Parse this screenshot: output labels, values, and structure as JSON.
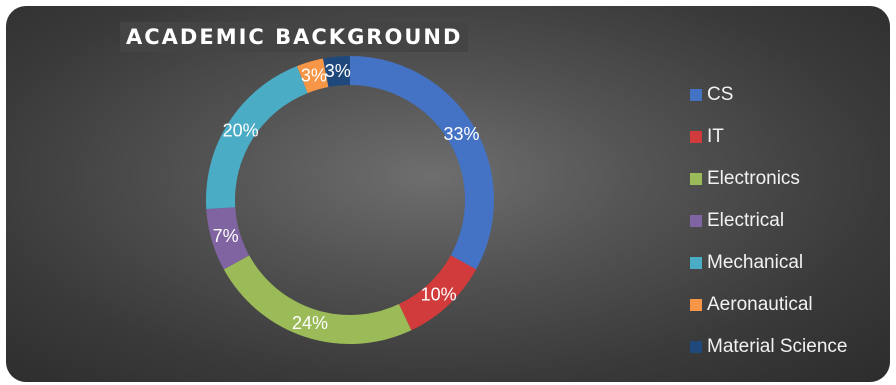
{
  "chart_data": {
    "type": "pie",
    "variant": "donut",
    "title": "ACADEMIC BACKGROUND",
    "categories": [
      "CS",
      "IT",
      "Electronics",
      "Electrical",
      "Mechanical",
      "Aeronautical",
      "Material Science"
    ],
    "values": [
      33,
      10,
      24,
      7,
      20,
      3,
      3
    ],
    "data_labels": [
      "33%",
      "10%",
      "24%",
      "7%",
      "20%",
      "3%",
      "3%"
    ],
    "colors": [
      "#4472C4",
      "#D13B3B",
      "#9BBB59",
      "#8064A2",
      "#4BACC6",
      "#F79646",
      "#1F497D"
    ],
    "legend_position": "right"
  }
}
